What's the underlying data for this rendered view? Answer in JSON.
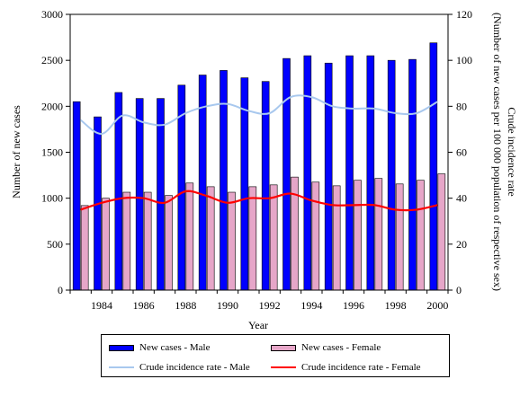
{
  "chart_data": {
    "type": "bar",
    "title": "",
    "xlabel": "Year",
    "ylabel": "Number of new cases",
    "y2label_lines": [
      "Crude incidence rate",
      "(Number of new cases per 100 000 population of respective sex)"
    ],
    "ylim": [
      0,
      3000
    ],
    "y2lim": [
      0,
      120
    ],
    "yticks": [
      0,
      500,
      1000,
      1500,
      2000,
      2500,
      3000
    ],
    "y2ticks": [
      0,
      20,
      40,
      60,
      80,
      100,
      120
    ],
    "grid": false,
    "legend_position": "bottom",
    "categories": [
      1983,
      1984,
      1985,
      1986,
      1987,
      1988,
      1989,
      1990,
      1991,
      1992,
      1993,
      1994,
      1995,
      1996,
      1997,
      1998,
      1999,
      2000
    ],
    "xticklabels": [
      "1984",
      "1986",
      "1988",
      "1990",
      "1992",
      "1994",
      "1996",
      "1998",
      "2000"
    ],
    "series": [
      {
        "name": "New cases - Male",
        "kind": "bar",
        "axis": "left",
        "color": "#0000ff",
        "values": [
          2050,
          1885,
          2150,
          2085,
          2085,
          2230,
          2340,
          2390,
          2310,
          2270,
          2520,
          2550,
          2470,
          2550,
          2550,
          2500,
          2510,
          2690
        ]
      },
      {
        "name": "New cases - Female",
        "kind": "bar",
        "axis": "left",
        "color": "#e6a6c8",
        "values": [
          920,
          1000,
          1065,
          1065,
          1030,
          1165,
          1125,
          1065,
          1125,
          1145,
          1230,
          1175,
          1135,
          1195,
          1215,
          1155,
          1195,
          1265
        ]
      },
      {
        "name": "Crude incidence rate - Male",
        "kind": "line",
        "axis": "right",
        "color": "#a8c8ee",
        "values": [
          74,
          68,
          76,
          73,
          72,
          77,
          80,
          81,
          78,
          77,
          84,
          84,
          80,
          79,
          79,
          77,
          77,
          82
        ]
      },
      {
        "name": "Crude incidence rate - Female",
        "kind": "line",
        "axis": "right",
        "color": "#ff0000",
        "values": [
          35,
          38,
          40,
          40,
          38,
          43,
          41,
          38,
          40,
          40,
          42,
          39,
          37,
          37,
          37,
          35,
          35,
          37
        ]
      }
    ]
  }
}
